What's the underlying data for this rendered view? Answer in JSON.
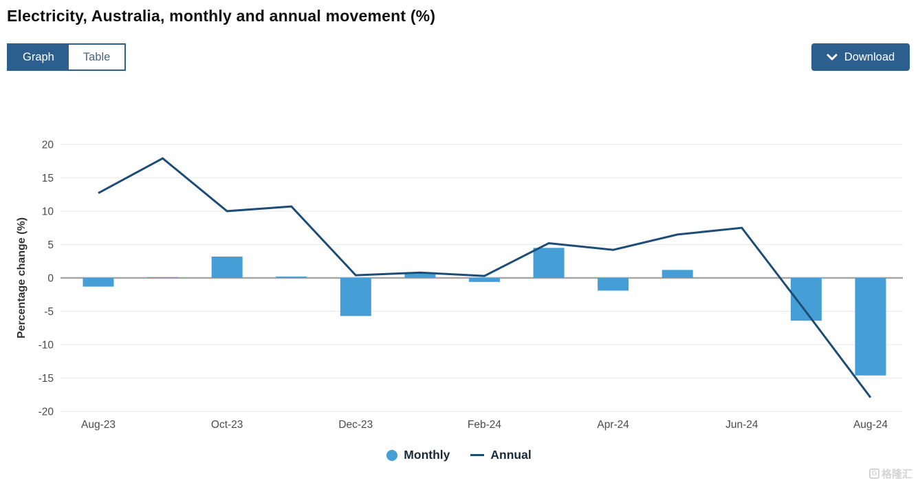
{
  "header": {
    "title": "Electricity, Australia, monthly and annual movement (%)"
  },
  "toggle": {
    "graph_label": "Graph",
    "table_label": "Table",
    "selected": "Graph"
  },
  "download": {
    "label": "Download",
    "icon": "chevron-down-icon"
  },
  "ui_colors": {
    "accent_blue": "#2d5f8e",
    "bar_blue": "#459fd6",
    "line_navy": "#1d4d77",
    "zero_line_gray": "#a6a6a6",
    "gridline_gray": "#e9e9e9",
    "axis_text_gray": "#4a4a4a"
  },
  "chart_data": {
    "type": "combo",
    "title": "Electricity, Australia, monthly and annual movement (%)",
    "categories": [
      "Aug-23",
      "Sep-23",
      "Oct-23",
      "Nov-23",
      "Dec-23",
      "Jan-24",
      "Feb-24",
      "Mar-24",
      "Apr-24",
      "May-24",
      "Jun-24",
      "Jul-24",
      "Aug-24"
    ],
    "x_tick_labels": [
      "Aug-23",
      "Oct-23",
      "Dec-23",
      "Feb-24",
      "Apr-24",
      "Jun-24",
      "Aug-24"
    ],
    "series": [
      {
        "name": "Monthly",
        "type": "bar",
        "color": "#459fd6",
        "values": [
          -1.3,
          0.1,
          3.2,
          0.2,
          -5.7,
          0.7,
          -0.6,
          4.5,
          -1.9,
          1.2,
          0.0,
          -6.4,
          -14.6
        ]
      },
      {
        "name": "Annual",
        "type": "line",
        "color": "#1d4d77",
        "values": [
          12.7,
          17.9,
          10.0,
          10.7,
          0.4,
          0.8,
          0.3,
          5.2,
          4.2,
          6.5,
          7.5,
          -5.1,
          -17.9
        ]
      }
    ],
    "xlabel": "",
    "ylabel": "Percentage change (%)",
    "ylim": [
      -20,
      20
    ],
    "yticks": [
      20,
      15,
      10,
      5,
      0,
      -5,
      -10,
      -15,
      -20
    ],
    "grid": true,
    "legend_position": "bottom"
  },
  "watermark": {
    "text": "格隆汇",
    "icon": "gelonghui-logo-icon"
  }
}
